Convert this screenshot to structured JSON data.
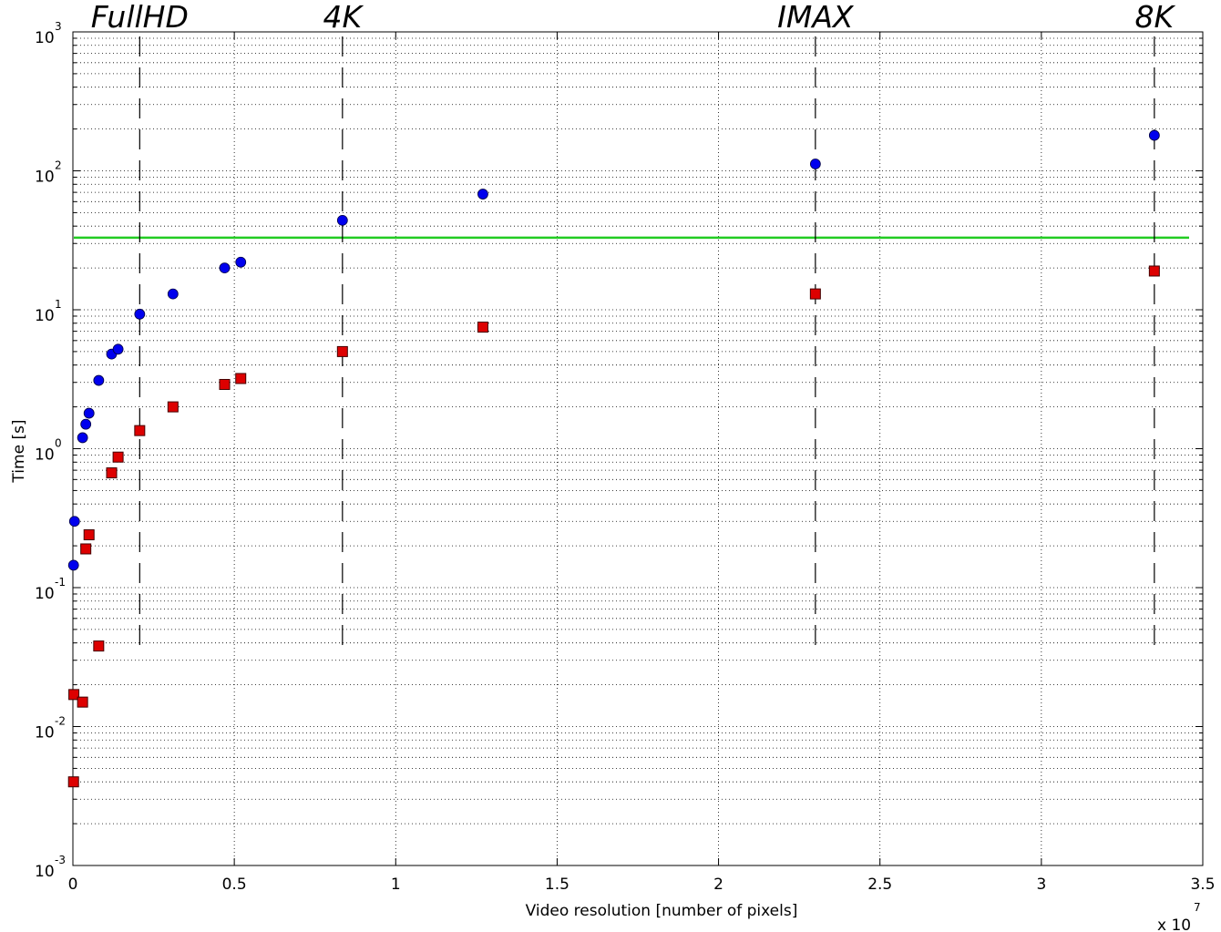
{
  "chart_data": {
    "type": "scatter",
    "title": "",
    "xlabel": "Video resolution [number of pixels]",
    "ylabel": "Time [s]",
    "x_multiplier_label": "x 10",
    "x_multiplier_exponent": "7",
    "x_scale_factor": 10000000,
    "xlim": [
      0,
      3.5
    ],
    "ylim": [
      0.001,
      1000
    ],
    "yscale": "log",
    "grid": true,
    "xticks": [
      "0",
      "0.5",
      "1",
      "1.5",
      "2",
      "2.5",
      "3",
      "3.5"
    ],
    "yticks": [
      {
        "base": "10",
        "exp": "-3"
      },
      {
        "base": "10",
        "exp": "-2"
      },
      {
        "base": "10",
        "exp": "-1"
      },
      {
        "base": "10",
        "exp": "0"
      },
      {
        "base": "10",
        "exp": "1"
      },
      {
        "base": "10",
        "exp": "2"
      },
      {
        "base": "10",
        "exp": "3"
      }
    ],
    "reference_line": {
      "y": 33,
      "color": "#22cc22"
    },
    "annotations": [
      {
        "label": "FullHD",
        "x": 0.207
      },
      {
        "label": "4K",
        "x": 0.835
      },
      {
        "label": "IMAX",
        "x": 2.3
      },
      {
        "label": "8K",
        "x": 3.35
      }
    ],
    "series": [
      {
        "marker": "circle",
        "color": "#0000ee",
        "points": [
          {
            "x": 0.005,
            "y": 0.3
          },
          {
            "x": 0.002,
            "y": 0.145
          },
          {
            "x": 0.03,
            "y": 1.2
          },
          {
            "x": 0.04,
            "y": 1.5
          },
          {
            "x": 0.05,
            "y": 1.8
          },
          {
            "x": 0.08,
            "y": 3.1
          },
          {
            "x": 0.12,
            "y": 4.8
          },
          {
            "x": 0.14,
            "y": 5.2
          },
          {
            "x": 0.207,
            "y": 9.3
          },
          {
            "x": 0.31,
            "y": 13
          },
          {
            "x": 0.47,
            "y": 20
          },
          {
            "x": 0.52,
            "y": 22
          },
          {
            "x": 0.835,
            "y": 44
          },
          {
            "x": 1.27,
            "y": 68
          },
          {
            "x": 2.3,
            "y": 112
          },
          {
            "x": 3.35,
            "y": 180
          }
        ]
      },
      {
        "marker": "square",
        "color": "#dd0000",
        "points": [
          {
            "x": 0.002,
            "y": 0.004
          },
          {
            "x": 0.003,
            "y": 0.017
          },
          {
            "x": 0.03,
            "y": 0.015
          },
          {
            "x": 0.04,
            "y": 0.19
          },
          {
            "x": 0.05,
            "y": 0.24
          },
          {
            "x": 0.08,
            "y": 0.038
          },
          {
            "x": 0.12,
            "y": 0.67
          },
          {
            "x": 0.14,
            "y": 0.87
          },
          {
            "x": 0.207,
            "y": 1.35
          },
          {
            "x": 0.31,
            "y": 2.0
          },
          {
            "x": 0.47,
            "y": 2.9
          },
          {
            "x": 0.52,
            "y": 3.2
          },
          {
            "x": 0.835,
            "y": 5.0
          },
          {
            "x": 1.27,
            "y": 7.5
          },
          {
            "x": 2.3,
            "y": 13
          },
          {
            "x": 3.35,
            "y": 19
          }
        ]
      }
    ]
  }
}
